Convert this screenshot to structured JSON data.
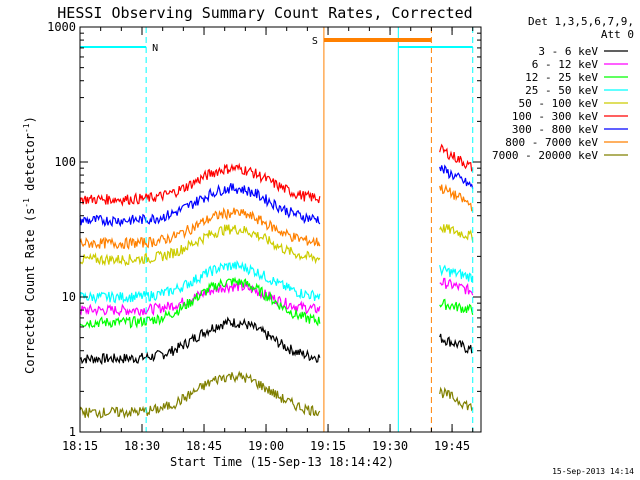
{
  "chart_data": {
    "type": "line",
    "title": "HESSI Observing Summary Count Rates, Corrected",
    "xlabel": "Start Time (15-Sep-13 18:14:42)",
    "ylabel_main": "Corrected Count Rate (s",
    "ylabel_sup1": "-1",
    "ylabel_mid": " detector",
    "ylabel_sup2": "-1",
    "ylabel_end": ")",
    "y_scale": "log",
    "ylim": [
      1,
      1000
    ],
    "xlim": [
      "18:15",
      "19:52"
    ],
    "x_ticks": [
      "18:15",
      "18:30",
      "18:45",
      "19:00",
      "19:15",
      "19:30",
      "19:45"
    ],
    "y_ticks": [
      "1",
      "10",
      "100",
      "1000"
    ],
    "legend_header_1": "Det 1,3,5,6,7,9,",
    "legend_header_2": "Att 0",
    "legend_position": "right",
    "timestamp": "15-Sep-2013 14:14",
    "flag_labels": [
      {
        "label": "N",
        "color": "#00ffff",
        "start": "18:15",
        "end": "18:31"
      },
      {
        "label": "S",
        "color": "#ff8000",
        "start": "19:14",
        "end": "19:40"
      },
      {
        "label": "",
        "color": "#00ffff",
        "start": "19:32",
        "end": "19:50"
      }
    ],
    "vertical_markers": [
      {
        "time": "18:31",
        "color": "#00ffff",
        "style": "dashed"
      },
      {
        "time": "19:14",
        "color": "#ff8000",
        "style": "solid"
      },
      {
        "time": "19:32",
        "color": "#00ffff",
        "style": "solid"
      },
      {
        "time": "19:40",
        "color": "#ff8000",
        "style": "dashed"
      },
      {
        "time": "19:50",
        "color": "#00ffff",
        "style": "dashed"
      }
    ],
    "series": [
      {
        "name": "3 - 6 keV",
        "color": "#000000",
        "base": 3.5,
        "peak": 6.5,
        "end_start": 5,
        "end_value": 4
      },
      {
        "name": "6 - 12 keV",
        "color": "#ff00ff",
        "base": 8,
        "peak": 12,
        "end_start": 13,
        "end_value": 11
      },
      {
        "name": "12 - 25 keV",
        "color": "#00ff00",
        "base": 6.5,
        "peak": 13,
        "end_start": 9,
        "end_value": 8
      },
      {
        "name": "25 - 50 keV",
        "color": "#00ffff",
        "base": 10,
        "peak": 17,
        "end_start": 16,
        "end_value": 14
      },
      {
        "name": "50 - 100 keV",
        "color": "#cccc00",
        "base": 19,
        "peak": 32,
        "end_start": 33,
        "end_value": 28
      },
      {
        "name": "100 - 300 keV",
        "color": "#ff0000",
        "base": 53,
        "peak": 90,
        "end_start": 125,
        "end_value": 90
      },
      {
        "name": "300 - 800 keV",
        "color": "#0000ff",
        "base": 37,
        "peak": 64,
        "end_start": 90,
        "end_value": 65
      },
      {
        "name": "800 - 7000 keV",
        "color": "#ff8000",
        "base": 25,
        "peak": 42,
        "end_start": 65,
        "end_value": 47
      },
      {
        "name": "7000 - 20000 keV",
        "color": "#808000",
        "base": 1.4,
        "peak": 2.6,
        "end_start": 2,
        "end_value": 1.5
      }
    ]
  }
}
